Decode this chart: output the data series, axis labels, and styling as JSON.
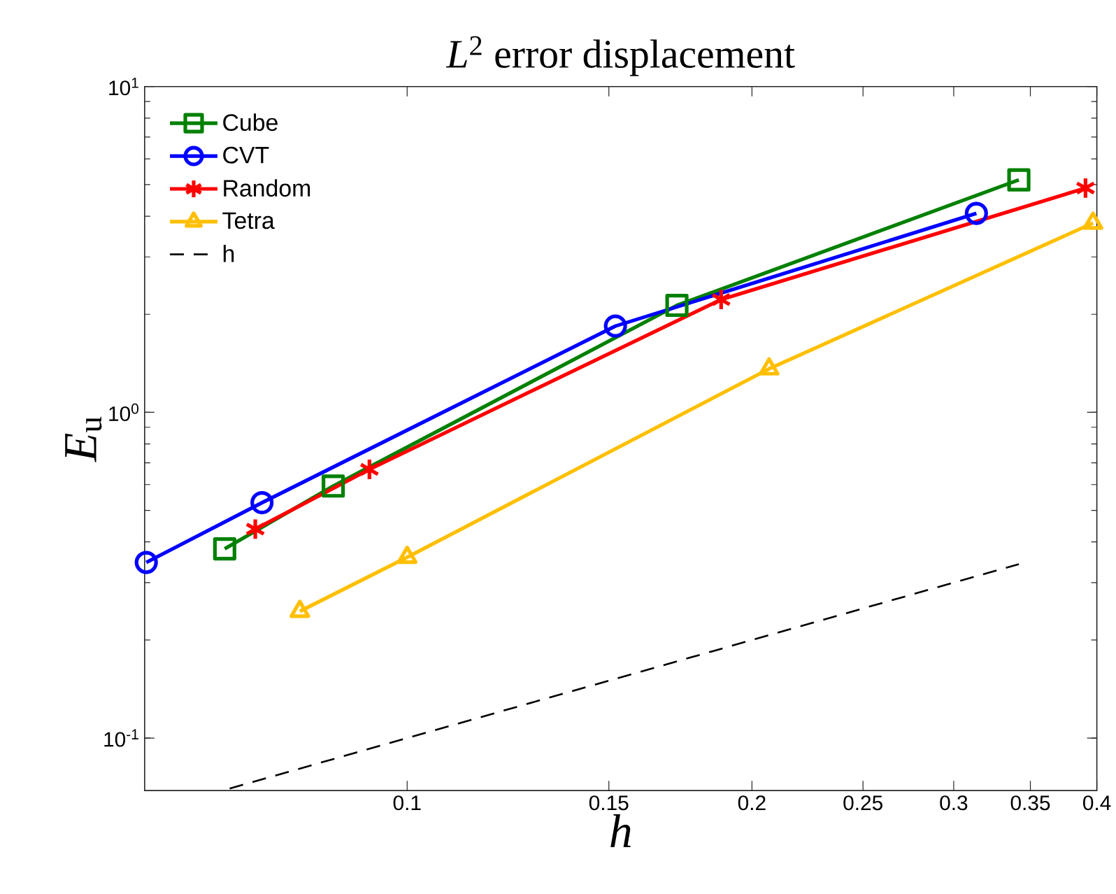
{
  "chart_data": {
    "type": "line",
    "title": "*L*$^{2}$ error displacement",
    "xlabel": "h",
    "ylabel": "*E*$_{u}$",
    "log": "xy",
    "xlim": [
      0.059,
      0.4
    ],
    "ylim": [
      0.069,
      10
    ],
    "xticks": [
      0.1,
      0.15,
      0.2,
      0.25,
      0.3,
      0.35,
      0.4
    ],
    "yticks": [
      {
        "value": 0.1,
        "label": "10$^{-1}$"
      },
      {
        "value": 1,
        "label": "10$^{0}$"
      },
      {
        "value": 10,
        "label": "10$^{1}$"
      }
    ],
    "grid": false,
    "legend": "top left",
    "series": [
      {
        "name": "Cube",
        "color": "#008000",
        "marker": "square",
        "line_style": "solid",
        "x": [
          0.0693,
          0.0862,
          0.172,
          0.342
        ],
        "values": [
          0.381,
          0.594,
          2.13,
          5.17
        ]
      },
      {
        "name": "CVT",
        "color": "#0000ff",
        "marker": "circle",
        "line_style": "solid",
        "x": [
          0.0592,
          0.0747,
          0.152,
          0.314
        ],
        "values": [
          0.346,
          0.528,
          1.84,
          4.08
        ]
      },
      {
        "name": "Random",
        "color": "#ff0000",
        "marker": "cross",
        "line_style": "solid",
        "x": [
          0.0737,
          0.0927,
          0.188,
          0.391
        ],
        "values": [
          0.438,
          0.668,
          2.22,
          4.88
        ]
      },
      {
        "name": "Tetra",
        "color": "#ffbf00",
        "marker": "triangle",
        "line_style": "solid",
        "x": [
          0.0806,
          0.1,
          0.207,
          0.397
        ],
        "values": [
          0.245,
          0.359,
          1.36,
          3.81
        ]
      },
      {
        "name": "h",
        "color": "#000000",
        "marker": "none",
        "line_style": "dashed",
        "x": [
          0.07,
          0.342
        ],
        "values": [
          0.07,
          0.342
        ]
      }
    ]
  }
}
